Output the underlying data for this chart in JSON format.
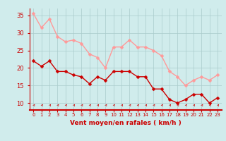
{
  "x": [
    0,
    1,
    2,
    3,
    4,
    5,
    6,
    7,
    8,
    9,
    10,
    11,
    12,
    13,
    14,
    15,
    16,
    17,
    18,
    19,
    20,
    21,
    22,
    23
  ],
  "wind_avg": [
    22,
    20.5,
    22,
    19,
    19,
    18,
    17.5,
    15.5,
    17.5,
    16.5,
    19,
    19,
    19,
    17.5,
    17.5,
    14,
    14,
    11,
    10,
    11,
    12.5,
    12.5,
    10,
    11.5
  ],
  "wind_gust": [
    35.5,
    31.5,
    34,
    29,
    27.5,
    28,
    27,
    24,
    23,
    20,
    26,
    26,
    28,
    26,
    26,
    25,
    23.5,
    19,
    17.5,
    15,
    16.5,
    17.5,
    16.5,
    18
  ],
  "avg_color": "#cc0000",
  "gust_color": "#ff9999",
  "bg_color": "#d0ecec",
  "grid_color": "#aacccc",
  "axis_label_color": "#cc0000",
  "tick_color": "#cc0000",
  "xlabel": "Vent moyen/en rafales ( km/h )",
  "ylim": [
    8,
    37
  ],
  "yticks": [
    10,
    15,
    20,
    25,
    30,
    35
  ],
  "line_width": 1.0,
  "marker_size": 2.5
}
